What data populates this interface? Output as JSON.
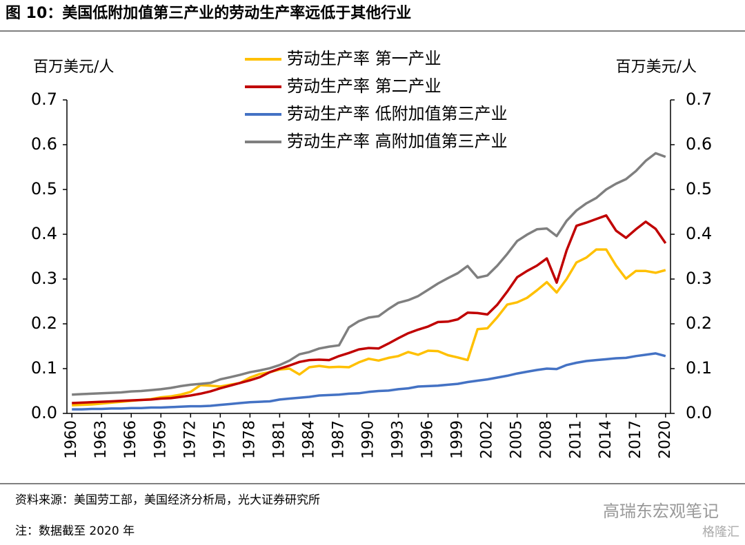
{
  "chart_data": {
    "type": "line",
    "title": "图 10：美国低附加值第三产业的劳动生产率远低于其他行业",
    "y_label": "百万美元/人",
    "y2_label": "百万美元/人",
    "x": [
      1960,
      1961,
      1962,
      1963,
      1964,
      1965,
      1966,
      1967,
      1968,
      1969,
      1970,
      1971,
      1972,
      1973,
      1974,
      1975,
      1976,
      1977,
      1978,
      1979,
      1980,
      1981,
      1982,
      1983,
      1984,
      1985,
      1986,
      1987,
      1988,
      1989,
      1990,
      1991,
      1992,
      1993,
      1994,
      1995,
      1996,
      1997,
      1998,
      1999,
      2000,
      2001,
      2002,
      2003,
      2004,
      2005,
      2006,
      2007,
      2008,
      2009,
      2010,
      2011,
      2012,
      2013,
      2014,
      2015,
      2016,
      2017,
      2018,
      2019,
      2020
    ],
    "xlim": [
      1959.5,
      2020.5
    ],
    "xticks": [
      1960,
      1963,
      1966,
      1969,
      1972,
      1975,
      1978,
      1981,
      1984,
      1987,
      1990,
      1993,
      1996,
      1999,
      2002,
      2005,
      2008,
      2011,
      2014,
      2017,
      2020
    ],
    "ylim": [
      0,
      0.7
    ],
    "yticks": [
      {
        "value": 0,
        "label": "0.0"
      },
      0.1,
      0.2,
      0.3,
      0.4,
      0.5,
      0.6,
      0.7
    ],
    "y2lim": [
      0,
      0.7
    ],
    "y2ticks": [
      {
        "value": 0,
        "label": "0.0"
      },
      0.1,
      0.2,
      0.3,
      0.4,
      0.5,
      0.6,
      0.7
    ],
    "legend": "top",
    "series": [
      {
        "name": "劳动生产率 第一产业",
        "color": "#ffc000",
        "values": [
          0.018,
          0.019,
          0.02,
          0.022,
          0.024,
          0.026,
          0.028,
          0.03,
          0.032,
          0.036,
          0.038,
          0.042,
          0.048,
          0.063,
          0.062,
          0.06,
          0.064,
          0.068,
          0.08,
          0.088,
          0.092,
          0.098,
          0.1,
          0.087,
          0.103,
          0.106,
          0.103,
          0.104,
          0.103,
          0.114,
          0.122,
          0.118,
          0.124,
          0.128,
          0.137,
          0.131,
          0.14,
          0.139,
          0.13,
          0.125,
          0.119,
          0.188,
          0.19,
          0.215,
          0.243,
          0.248,
          0.258,
          0.275,
          0.293,
          0.27,
          0.3,
          0.337,
          0.348,
          0.366,
          0.366,
          0.33,
          0.301,
          0.318,
          0.318,
          0.314,
          0.32
        ]
      },
      {
        "name": "劳动生产率 第二产业",
        "color": "#c00000",
        "values": [
          0.023,
          0.024,
          0.025,
          0.026,
          0.027,
          0.028,
          0.029,
          0.03,
          0.031,
          0.033,
          0.034,
          0.037,
          0.04,
          0.044,
          0.049,
          0.056,
          0.062,
          0.068,
          0.074,
          0.081,
          0.092,
          0.1,
          0.107,
          0.115,
          0.119,
          0.12,
          0.119,
          0.128,
          0.135,
          0.143,
          0.146,
          0.145,
          0.156,
          0.168,
          0.179,
          0.187,
          0.194,
          0.204,
          0.205,
          0.21,
          0.225,
          0.224,
          0.221,
          0.243,
          0.272,
          0.304,
          0.318,
          0.33,
          0.346,
          0.292,
          0.364,
          0.419,
          0.426,
          0.434,
          0.442,
          0.408,
          0.392,
          0.411,
          0.428,
          0.412,
          0.38
        ]
      },
      {
        "name": "劳动生产率 低附加值第三产业",
        "color": "#4472c4",
        "values": [
          0.009,
          0.009,
          0.01,
          0.01,
          0.011,
          0.011,
          0.012,
          0.012,
          0.013,
          0.013,
          0.014,
          0.015,
          0.016,
          0.016,
          0.017,
          0.019,
          0.021,
          0.023,
          0.025,
          0.026,
          0.027,
          0.031,
          0.033,
          0.035,
          0.037,
          0.04,
          0.041,
          0.042,
          0.044,
          0.045,
          0.048,
          0.05,
          0.051,
          0.054,
          0.056,
          0.06,
          0.061,
          0.062,
          0.064,
          0.066,
          0.07,
          0.073,
          0.076,
          0.08,
          0.084,
          0.089,
          0.093,
          0.097,
          0.1,
          0.099,
          0.108,
          0.113,
          0.117,
          0.119,
          0.121,
          0.123,
          0.124,
          0.128,
          0.131,
          0.134,
          0.128
        ]
      },
      {
        "name": "劳动生产率 高附加值第三产业",
        "color": "#7f7f7f",
        "values": [
          0.042,
          0.043,
          0.044,
          0.045,
          0.046,
          0.047,
          0.049,
          0.05,
          0.052,
          0.054,
          0.057,
          0.061,
          0.064,
          0.066,
          0.068,
          0.076,
          0.081,
          0.086,
          0.092,
          0.096,
          0.101,
          0.108,
          0.118,
          0.132,
          0.137,
          0.145,
          0.149,
          0.152,
          0.192,
          0.206,
          0.214,
          0.217,
          0.233,
          0.247,
          0.253,
          0.262,
          0.276,
          0.29,
          0.302,
          0.313,
          0.329,
          0.303,
          0.308,
          0.33,
          0.356,
          0.385,
          0.399,
          0.411,
          0.413,
          0.396,
          0.43,
          0.453,
          0.469,
          0.481,
          0.5,
          0.513,
          0.523,
          0.541,
          0.564,
          0.581,
          0.573
        ]
      }
    ],
    "source": "资料来源：美国劳工部，美国经济分析局，光大证券研究所",
    "note": "注：数据截至 2020 年",
    "watermark": [
      "高瑞东宏观笔记",
      "格隆汇"
    ]
  }
}
